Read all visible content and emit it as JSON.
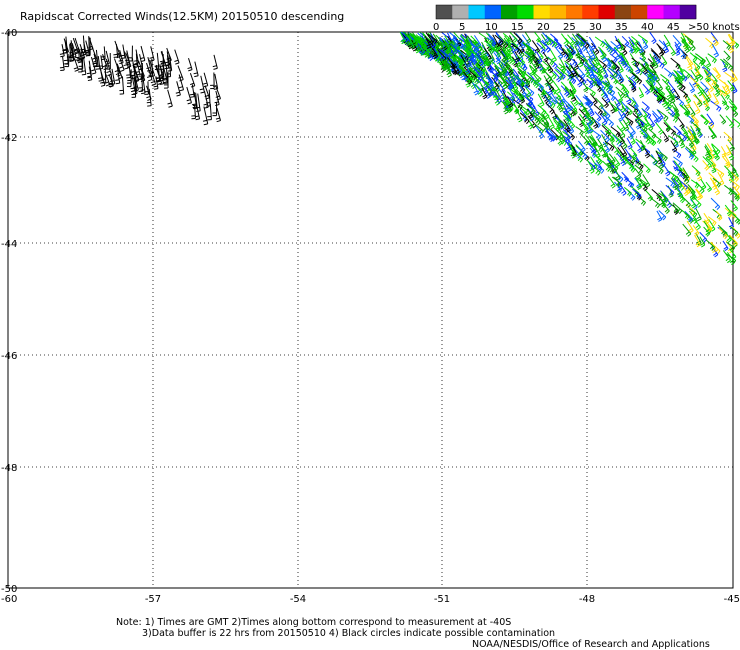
{
  "title": "Rapidscat Corrected Winds(12.5KM) 20150510 descending",
  "colorbar": {
    "labels": [
      "0",
      "5",
      "10",
      "15",
      "20",
      "25",
      "30",
      "35",
      "40",
      "45",
      ">50 knots"
    ],
    "colors": [
      "#505050",
      "#b0b0b0",
      "#00c8ff",
      "#0064ff",
      "#00a000",
      "#00dc00",
      "#ffdc00",
      "#ffb400",
      "#ff7800",
      "#ff3c00",
      "#e00000",
      "#8b4513",
      "#cc4400",
      "#ff00ff",
      "#b400ff",
      "#5000a0"
    ]
  },
  "axes": {
    "x_ticks": [
      "-60",
      "-57",
      "-54",
      "-51",
      "-48",
      "-45"
    ],
    "y_ticks": [
      "-40",
      "-42",
      "-44",
      "-46",
      "-48",
      "-50"
    ]
  },
  "notes": {
    "line1": "Note: 1) Times are GMT 2)Times along bottom correspond to measurement at -40S",
    "line2": "3)Data buffer is 22 hrs from 20150510 4) Black circles indicate possible contamination",
    "credit": "NOAA/NESDIS/Office of Research and Applications"
  }
}
